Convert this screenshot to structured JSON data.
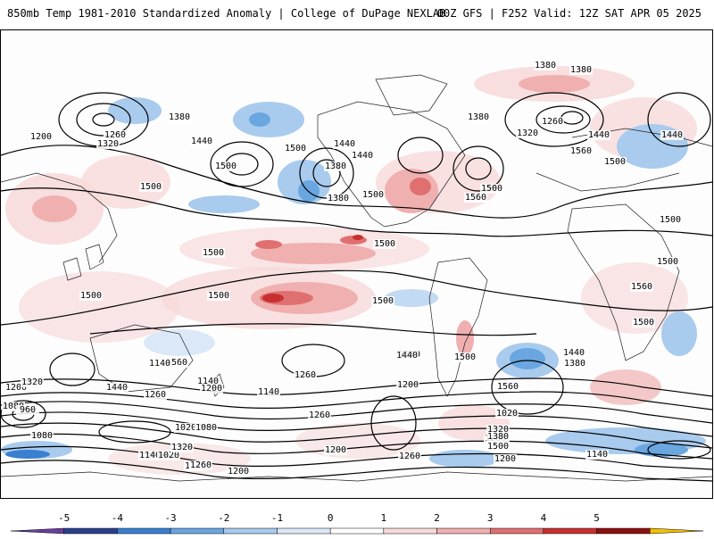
{
  "header": {
    "title_left": "850mb Temp 1981-2010 Standardized Anomaly | College of DuPage NEXLAB",
    "title_right": "00Z GFS | F252 Valid: 12Z SAT APR 05 2025"
  },
  "colorbar": {
    "ticks": [
      "-5",
      "-4",
      "-3",
      "-2",
      "-1",
      "0",
      "1",
      "2",
      "3",
      "4",
      "5"
    ],
    "colors": [
      "#6a3fa0",
      "#2b3f8c",
      "#3a7fd0",
      "#6aa6e0",
      "#a8cbee",
      "#dbe8f7",
      "#ffffff",
      "#f7dada",
      "#f0b0b0",
      "#e07070",
      "#c83030",
      "#8c1010",
      "#f5c000"
    ]
  },
  "map": {
    "contour_labels": [
      "1380",
      "1380",
      "1200",
      "1260",
      "1320",
      "1380",
      "1440",
      "1500",
      "1500",
      "1440",
      "1380",
      "1500",
      "1380",
      "1440",
      "1500",
      "1560",
      "1380",
      "1320",
      "1260",
      "1440",
      "1560",
      "1500",
      "1440",
      "1500",
      "1500",
      "1500",
      "1500",
      "1500",
      "1500",
      "1500",
      "1560",
      "1500",
      "1500",
      "1440",
      "1380",
      "1560",
      "1500",
      "1380",
      "1560",
      "1260",
      "1440",
      "1140",
      "1020",
      "1200",
      "1320",
      "1440",
      "1260",
      "1080",
      "1140",
      "1200",
      "1260",
      "960",
      "1140",
      "1200",
      "1080",
      "1020",
      "1080",
      "1140",
      "1260",
      "1200",
      "1020",
      "1140",
      "1320",
      "1260",
      "1200",
      "1260",
      "1320",
      "1380",
      "1500",
      "1200",
      "1140"
    ]
  }
}
